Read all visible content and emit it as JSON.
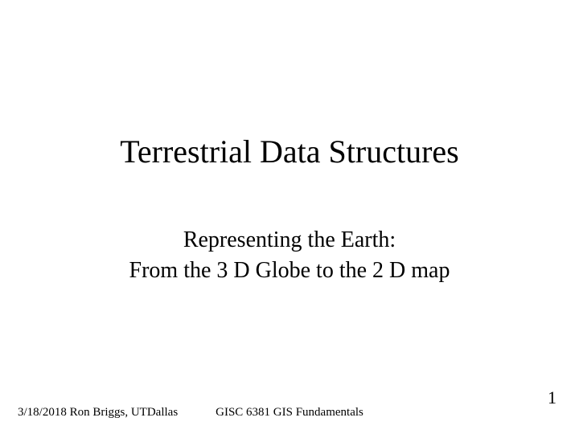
{
  "slide": {
    "title": "Terrestrial Data Structures",
    "subtitle_line1": "Representing the Earth:",
    "subtitle_line2": "From the 3 D Globe to the 2 D map"
  },
  "footer": {
    "left": "3/18/2018  Ron Briggs, UTDallas",
    "center": "GISC 6381  GIS Fundamentals",
    "page_number": "1"
  },
  "style": {
    "background_color": "#ffffff",
    "text_color": "#000000",
    "font_family": "Times New Roman",
    "title_fontsize": 40,
    "subtitle_fontsize": 28,
    "footer_fontsize": 15,
    "page_number_fontsize": 22
  }
}
